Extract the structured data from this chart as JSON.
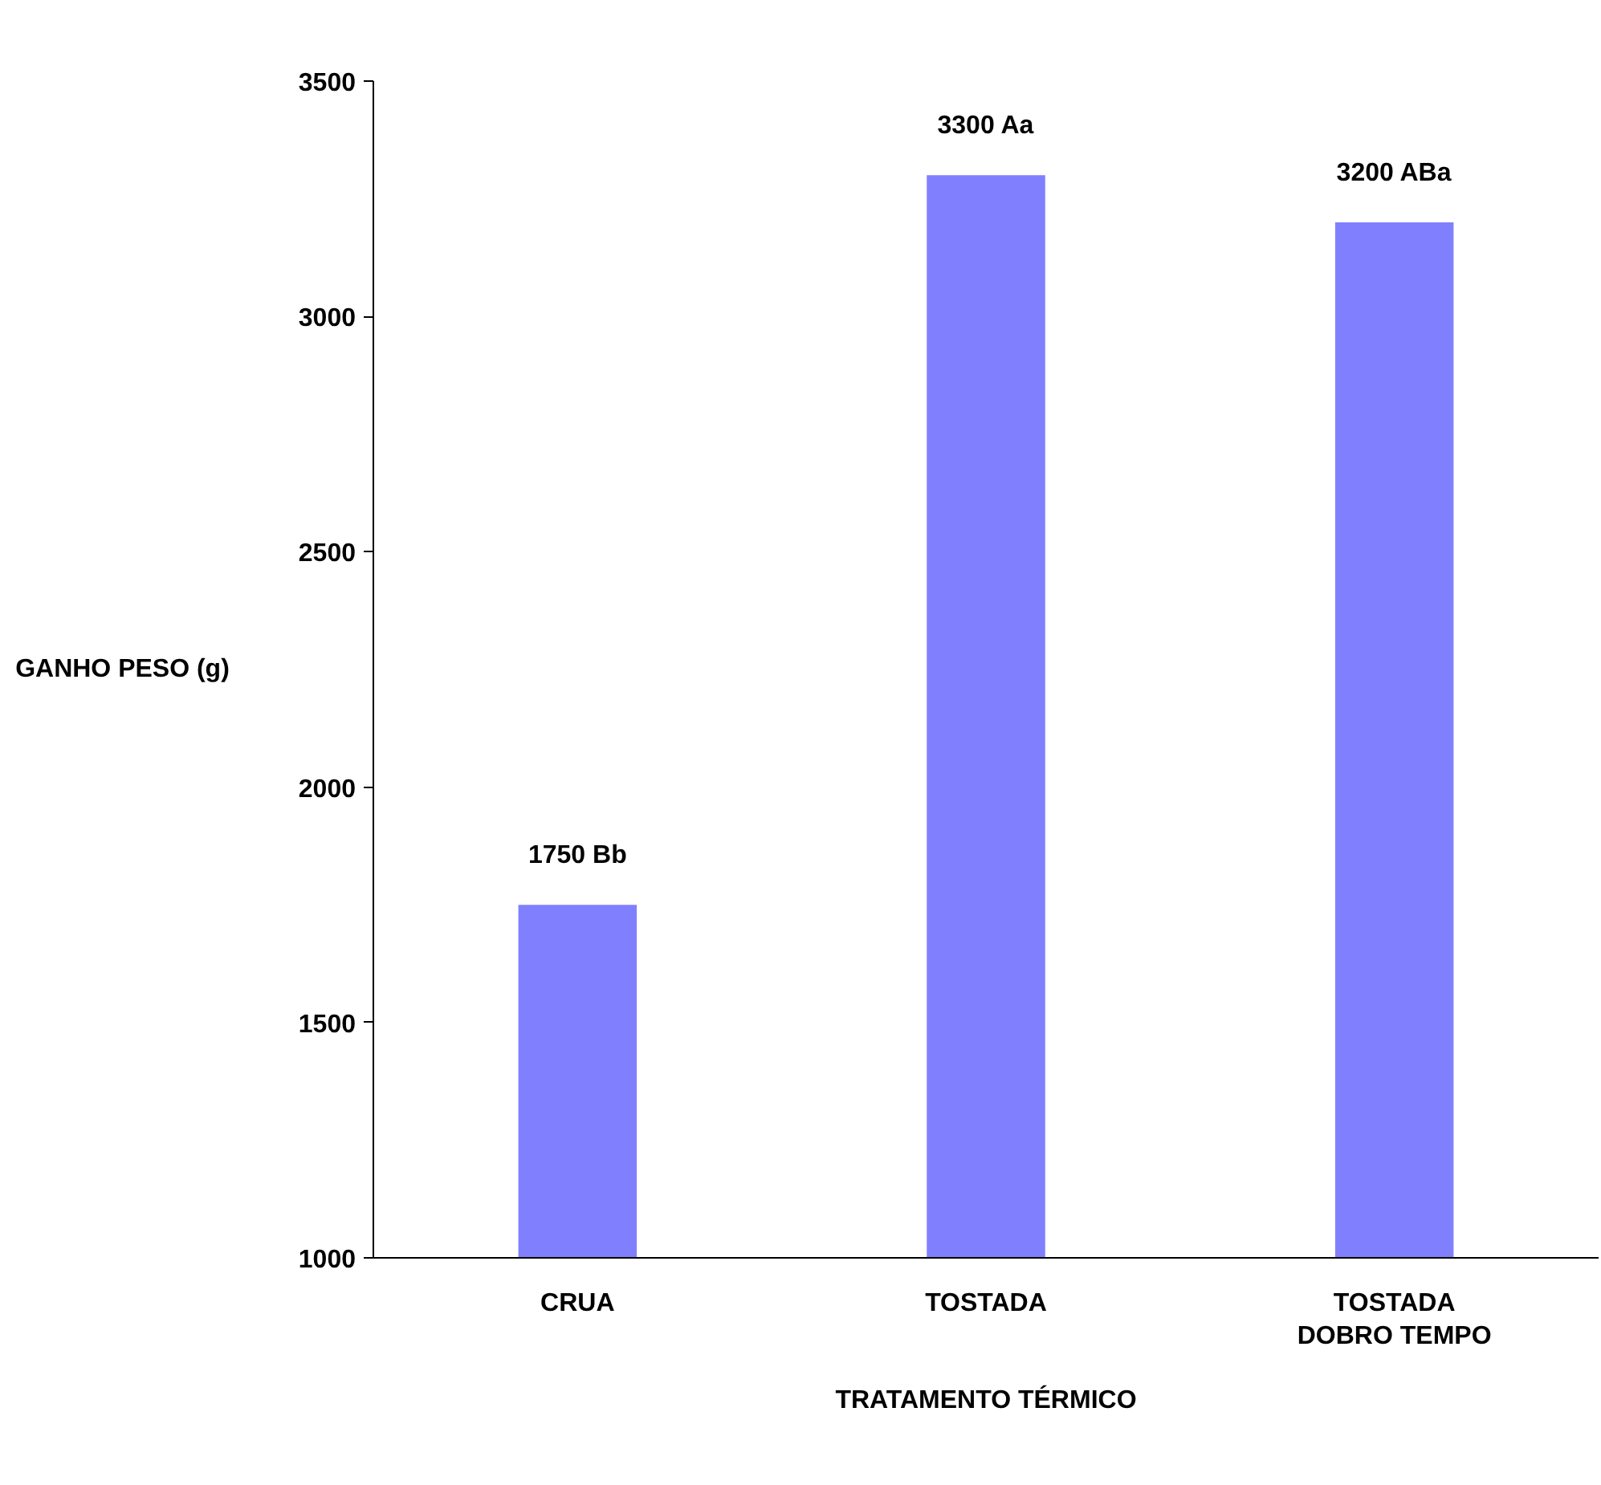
{
  "chart_data": {
    "type": "bar",
    "xlabel": "TRATAMENTO TÉRMICO",
    "ylabel": "GANHO PESO (g)",
    "categories": [
      "CRUA",
      "TOSTADA",
      "TOSTADA\nDOBRO TEMPO"
    ],
    "values": [
      1750,
      3300,
      3200
    ],
    "value_labels": [
      "1750 Bb",
      "3300 Aa",
      "3200 ABa"
    ],
    "color": "#8080ff",
    "ylim": [
      1000,
      3500
    ],
    "yticks": [
      1000,
      1500,
      2000,
      2500,
      3000,
      3500
    ],
    "grid": false
  }
}
